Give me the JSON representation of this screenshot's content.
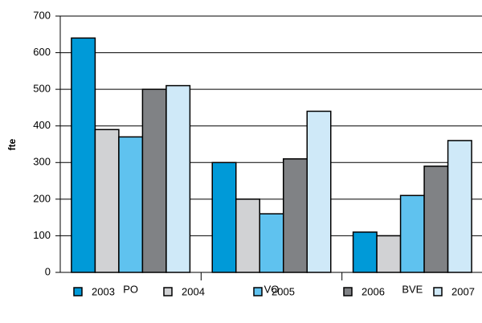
{
  "chart_data": {
    "type": "bar",
    "y_label": "fte",
    "categories": [
      "PO",
      "VO",
      "BVE"
    ],
    "series": [
      {
        "name": "2003",
        "color": "#009ad8",
        "values": [
          640,
          300,
          110
        ]
      },
      {
        "name": "2004",
        "color": "#d1d2d4",
        "values": [
          390,
          200,
          100
        ]
      },
      {
        "name": "2005",
        "color": "#5fc2ef",
        "values": [
          370,
          160,
          210
        ]
      },
      {
        "name": "2006",
        "color": "#808285",
        "values": [
          500,
          310,
          290
        ]
      },
      {
        "name": "2007",
        "color": "#cfe9f8",
        "values": [
          510,
          440,
          360
        ]
      }
    ],
    "ylim": [
      0,
      700
    ],
    "yticks": [
      0,
      100,
      200,
      300,
      400,
      500,
      600,
      700
    ],
    "grid": true,
    "legend": "bottom"
  }
}
